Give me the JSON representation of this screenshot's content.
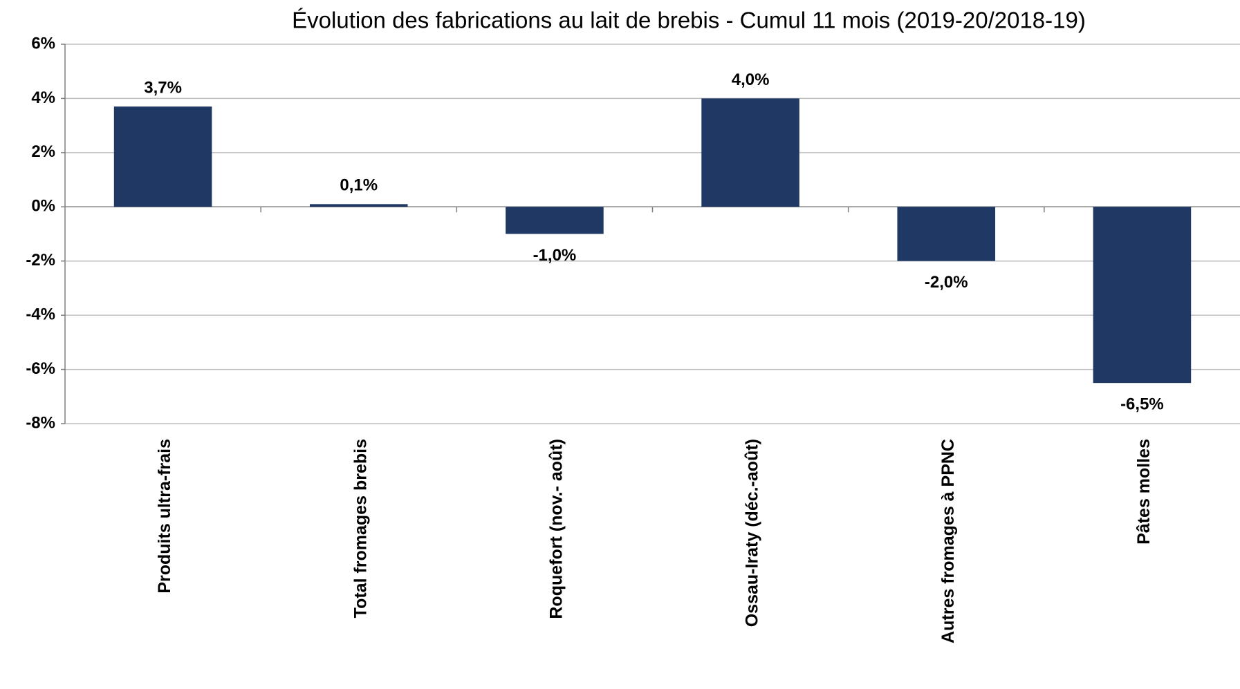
{
  "chart_data": {
    "type": "bar",
    "title": "Évolution des fabrications au lait de brebis - Cumul 11 mois (2019-20/2018-19)",
    "categories": [
      "Produits ultra-frais",
      "Total fromages brebis",
      "Roquefort (nov.- août)",
      "Ossau-Iraty (déc.-août)",
      "Autres fromages à PPNC",
      "Pâtes molles"
    ],
    "values": [
      3.7,
      0.1,
      -1.0,
      4.0,
      -2.0,
      -6.5
    ],
    "value_labels": [
      "3,7%",
      "0,1%",
      "-1,0%",
      "4,0%",
      "-2,0%",
      "-6,5%"
    ],
    "color": "#203864",
    "ylim": [
      -8,
      6
    ],
    "yticks": [
      {
        "value": -8,
        "label": "-8%"
      },
      {
        "value": -6,
        "label": "-6%"
      },
      {
        "value": -4,
        "label": "-4%"
      },
      {
        "value": -2,
        "label": "-2%"
      },
      {
        "value": 0,
        "label": "0%"
      },
      {
        "value": 2,
        "label": "2%"
      },
      {
        "value": 4,
        "label": "4%"
      },
      {
        "value": 6,
        "label": "6%"
      }
    ],
    "grid": true
  }
}
